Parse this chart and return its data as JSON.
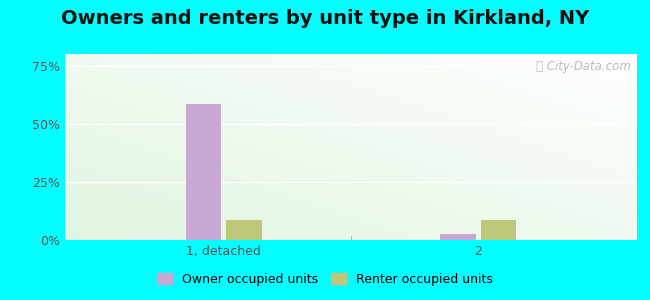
{
  "title": "Owners and renters by unit type in Kirkland, NY",
  "categories": [
    "1, detached",
    "2"
  ],
  "owner_values": [
    58.5,
    2.5
  ],
  "renter_values": [
    8.5,
    8.5
  ],
  "owner_color": "#c9a8d4",
  "renter_color": "#bfc87a",
  "yticks": [
    0,
    25,
    50,
    75
  ],
  "ytick_labels": [
    "0%",
    "25%",
    "50%",
    "75%"
  ],
  "ylim": [
    0,
    80
  ],
  "bar_width": 0.28,
  "outer_bg": "#00ffff",
  "watermark": "Ⓢ City-Data.com",
  "legend_labels": [
    "Owner occupied units",
    "Renter occupied units"
  ],
  "title_fontsize": 14,
  "group_positions": [
    1.25,
    3.25
  ]
}
